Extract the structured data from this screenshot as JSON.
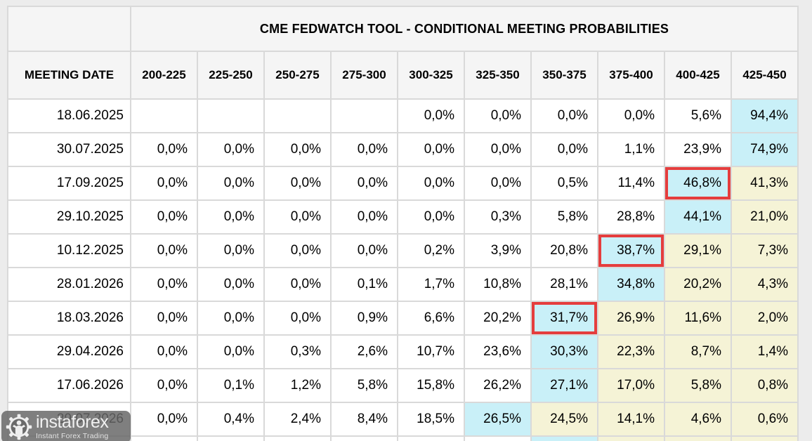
{
  "chart_data": {
    "type": "table",
    "title": "CME FEDWATCH TOOL - CONDITIONAL MEETING PROBABILITIES",
    "row_header": "MEETING DATE",
    "columns": [
      "200-225",
      "225-250",
      "250-275",
      "275-300",
      "300-325",
      "325-350",
      "350-375",
      "375-400",
      "400-425",
      "425-450"
    ],
    "rows": [
      {
        "date": "18.06.2025",
        "cells": [
          {
            "v": ""
          },
          {
            "v": ""
          },
          {
            "v": ""
          },
          {
            "v": ""
          },
          {
            "v": "0,0%"
          },
          {
            "v": "0,0%"
          },
          {
            "v": "0,0%"
          },
          {
            "v": "0,0%"
          },
          {
            "v": "5,6%"
          },
          {
            "v": "94,4%",
            "h": "cyan"
          }
        ]
      },
      {
        "date": "30.07.2025",
        "cells": [
          {
            "v": "0,0%"
          },
          {
            "v": "0,0%"
          },
          {
            "v": "0,0%"
          },
          {
            "v": "0,0%"
          },
          {
            "v": "0,0%"
          },
          {
            "v": "0,0%"
          },
          {
            "v": "0,0%"
          },
          {
            "v": "1,1%"
          },
          {
            "v": "23,9%"
          },
          {
            "v": "74,9%",
            "h": "cyan"
          }
        ]
      },
      {
        "date": "17.09.2025",
        "cells": [
          {
            "v": "0,0%"
          },
          {
            "v": "0,0%"
          },
          {
            "v": "0,0%"
          },
          {
            "v": "0,0%"
          },
          {
            "v": "0,0%"
          },
          {
            "v": "0,0%"
          },
          {
            "v": "0,5%"
          },
          {
            "v": "11,4%"
          },
          {
            "v": "46,8%",
            "h": "cyan",
            "box": true
          },
          {
            "v": "41,3%",
            "h": "yellow"
          }
        ]
      },
      {
        "date": "29.10.2025",
        "cells": [
          {
            "v": "0,0%"
          },
          {
            "v": "0,0%"
          },
          {
            "v": "0,0%"
          },
          {
            "v": "0,0%"
          },
          {
            "v": "0,0%"
          },
          {
            "v": "0,3%"
          },
          {
            "v": "5,8%"
          },
          {
            "v": "28,8%"
          },
          {
            "v": "44,1%",
            "h": "cyan"
          },
          {
            "v": "21,0%",
            "h": "yellow"
          }
        ]
      },
      {
        "date": "10.12.2025",
        "cells": [
          {
            "v": "0,0%"
          },
          {
            "v": "0,0%"
          },
          {
            "v": "0,0%"
          },
          {
            "v": "0,0%"
          },
          {
            "v": "0,2%"
          },
          {
            "v": "3,9%"
          },
          {
            "v": "20,8%"
          },
          {
            "v": "38,7%",
            "h": "cyan",
            "box": true
          },
          {
            "v": "29,1%",
            "h": "yellow"
          },
          {
            "v": "7,3%",
            "h": "yellow"
          }
        ]
      },
      {
        "date": "28.01.2026",
        "cells": [
          {
            "v": "0,0%"
          },
          {
            "v": "0,0%"
          },
          {
            "v": "0,0%"
          },
          {
            "v": "0,1%"
          },
          {
            "v": "1,7%"
          },
          {
            "v": "10,8%"
          },
          {
            "v": "28,1%"
          },
          {
            "v": "34,8%",
            "h": "cyan"
          },
          {
            "v": "20,2%",
            "h": "yellow"
          },
          {
            "v": "4,3%",
            "h": "yellow"
          }
        ]
      },
      {
        "date": "18.03.2026",
        "cells": [
          {
            "v": "0,0%"
          },
          {
            "v": "0,0%"
          },
          {
            "v": "0,0%"
          },
          {
            "v": "0,9%"
          },
          {
            "v": "6,6%"
          },
          {
            "v": "20,2%"
          },
          {
            "v": "31,7%",
            "h": "cyan",
            "box": true
          },
          {
            "v": "26,9%",
            "h": "yellow"
          },
          {
            "v": "11,6%",
            "h": "yellow"
          },
          {
            "v": "2,0%",
            "h": "yellow"
          }
        ]
      },
      {
        "date": "29.04.2026",
        "cells": [
          {
            "v": "0,0%"
          },
          {
            "v": "0,0%"
          },
          {
            "v": "0,3%"
          },
          {
            "v": "2,6%"
          },
          {
            "v": "10,7%"
          },
          {
            "v": "23,6%"
          },
          {
            "v": "30,3%",
            "h": "cyan"
          },
          {
            "v": "22,3%",
            "h": "yellow"
          },
          {
            "v": "8,7%",
            "h": "yellow"
          },
          {
            "v": "1,4%",
            "h": "yellow"
          }
        ]
      },
      {
        "date": "17.06.2026",
        "cells": [
          {
            "v": "0,0%"
          },
          {
            "v": "0,1%"
          },
          {
            "v": "1,2%"
          },
          {
            "v": "5,8%"
          },
          {
            "v": "15,8%"
          },
          {
            "v": "26,2%"
          },
          {
            "v": "27,1%",
            "h": "cyan"
          },
          {
            "v": "17,0%",
            "h": "yellow"
          },
          {
            "v": "5,8%",
            "h": "yellow"
          },
          {
            "v": "0,8%",
            "h": "yellow"
          }
        ]
      },
      {
        "date": "29.07.2026",
        "cells": [
          {
            "v": "0,0%"
          },
          {
            "v": "0,4%"
          },
          {
            "v": "2,4%"
          },
          {
            "v": "8,4%"
          },
          {
            "v": "18,5%"
          },
          {
            "v": "26,5%",
            "h": "cyan"
          },
          {
            "v": "24,5%",
            "h": "yellow"
          },
          {
            "v": "14,1%",
            "h": "yellow"
          },
          {
            "v": "4,6%",
            "h": "yellow"
          },
          {
            "v": "0,6%",
            "h": "yellow"
          }
        ]
      }
    ],
    "partial_row_highlights": [
      "",
      "",
      "",
      "",
      "",
      "",
      "cyan",
      "yellow",
      "yellow",
      "yellow"
    ],
    "legend_position": "none",
    "grid": true
  },
  "watermark": {
    "brand": "instaforex",
    "tagline": "Instant Forex Trading",
    "icon": "gear-person-icon"
  },
  "colors": {
    "highlight_cyan": "#c9f0f8",
    "highlight_yellow": "#f5f3d6",
    "red_box_border": "#e53d3d",
    "header_background": "#f5f5f5",
    "grid_line": "#d9d9d9",
    "page_background": "#ececec"
  }
}
